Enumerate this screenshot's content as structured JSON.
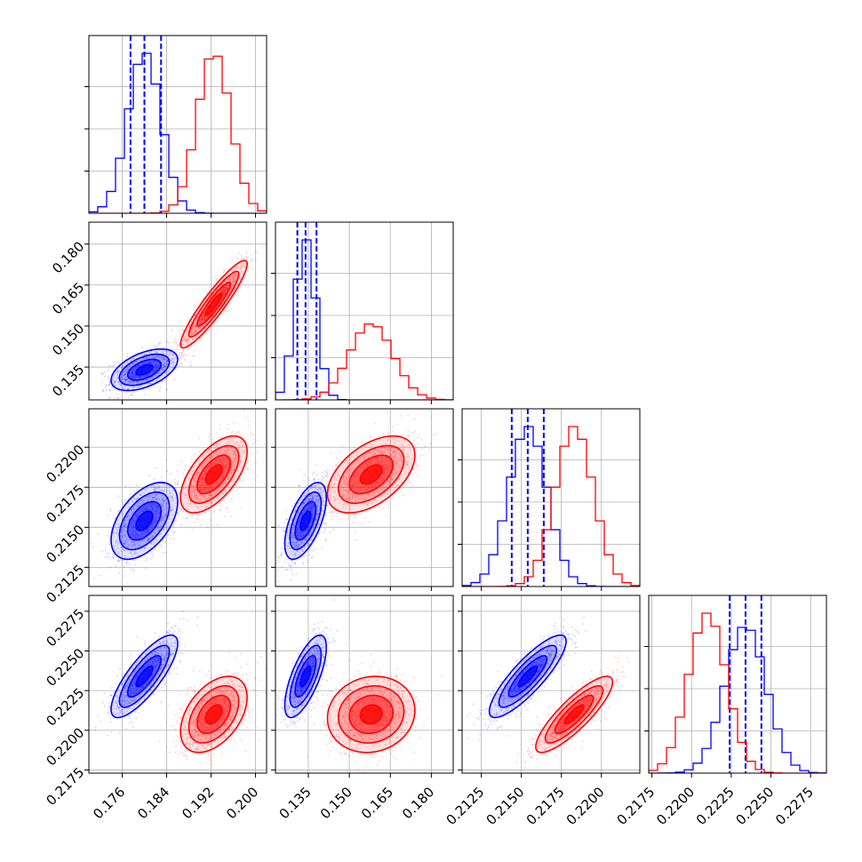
{
  "chart_data": {
    "type": "corner",
    "parameters": [
      "",
      "",
      "",
      ""
    ],
    "ranges": [
      [
        0.17,
        0.202
      ],
      [
        0.123,
        0.188
      ],
      [
        0.2113,
        0.2224
      ],
      [
        0.2173,
        0.2285
      ]
    ],
    "ticks": [
      [
        "0.176",
        "0.184",
        "0.192",
        "0.200"
      ],
      [
        "0.135",
        "0.150",
        "0.165",
        "0.180"
      ],
      [
        "0.2125",
        "0.2150",
        "0.2175",
        "0.2200"
      ],
      [
        "0.2175",
        "0.2200",
        "0.2225",
        "0.2250",
        "0.2275"
      ]
    ],
    "grid": true,
    "series": [
      {
        "color": "#0000ff",
        "means": [
          0.18,
          0.134,
          0.2154,
          0.2234
        ],
        "stds": [
          0.003,
          0.0038,
          0.0012,
          0.0013
        ],
        "quantiles": [
          [
            0.1775,
            0.18,
            0.183
          ],
          [
            0.131,
            0.134,
            0.138
          ],
          [
            0.2144,
            0.2154,
            0.2164
          ],
          [
            0.2224,
            0.2234,
            0.2244
          ]
        ],
        "correlations": [
          [
            1,
            0.5,
            0.5,
            0.8
          ],
          [
            0.5,
            1,
            0.6,
            0.7
          ],
          [
            0.5,
            0.6,
            1,
            0.85
          ],
          [
            0.8,
            0.7,
            0.85,
            1
          ]
        ]
      },
      {
        "color": "#ff0000",
        "means": [
          0.1925,
          0.158,
          0.2183,
          0.221
        ],
        "stds": [
          0.003,
          0.008,
          0.0012,
          0.0012
        ],
        "quantiles": [],
        "correlations": [
          [
            1,
            0.92,
            0.6,
            0.45
          ],
          [
            0.92,
            1,
            0.5,
            0.1
          ],
          [
            0.6,
            0.5,
            1,
            0.85
          ],
          [
            0.45,
            0.1,
            0.85,
            1
          ]
        ]
      }
    ]
  },
  "colors": {
    "blue": "#0000ff",
    "red": "#ff0000",
    "axis": "#000000",
    "grid": "#b0b0b0"
  }
}
